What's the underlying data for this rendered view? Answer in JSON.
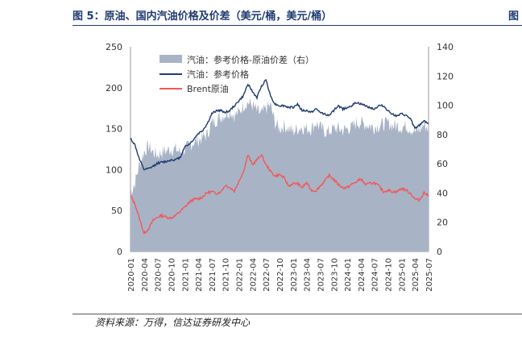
{
  "title": "图 5：原油、国内汽油价格及价差（美元/桶，美元/桶）",
  "corner_mark": "图",
  "source": "资料来源：万得，信达证券研发中心",
  "colors": {
    "spread": "#a9b3c6",
    "gasoline": "#1f3b70",
    "brent": "#ee5a5a",
    "title": "#1f3b70"
  },
  "chart_data": {
    "type": "area",
    "x_tick_labels": [
      "2020-01",
      "2020-04",
      "2020-07",
      "2020-10",
      "2021-01",
      "2021-04",
      "2021-07",
      "2021-10",
      "2022-01",
      "2022-04",
      "2022-07",
      "2022-10",
      "2023-01",
      "2023-04",
      "2023-07",
      "2023-10",
      "2024-01",
      "2024-04",
      "2024-07",
      "2024-10",
      "2025-01",
      "2025-04",
      "2025-07"
    ],
    "x": [
      "2020-01",
      "2020-02",
      "2020-03",
      "2020-04",
      "2020-05",
      "2020-06",
      "2020-07",
      "2020-08",
      "2020-09",
      "2020-10",
      "2020-11",
      "2020-12",
      "2021-01",
      "2021-02",
      "2021-03",
      "2021-04",
      "2021-05",
      "2021-06",
      "2021-07",
      "2021-08",
      "2021-09",
      "2021-10",
      "2021-11",
      "2021-12",
      "2022-01",
      "2022-02",
      "2022-03",
      "2022-04",
      "2022-05",
      "2022-06",
      "2022-07",
      "2022-08",
      "2022-09",
      "2022-10",
      "2022-11",
      "2022-12",
      "2023-01",
      "2023-02",
      "2023-03",
      "2023-04",
      "2023-05",
      "2023-06",
      "2023-07",
      "2023-08",
      "2023-09",
      "2023-10",
      "2023-11",
      "2023-12",
      "2024-01",
      "2024-02",
      "2024-03",
      "2024-04",
      "2024-05",
      "2024-06",
      "2024-07",
      "2024-08",
      "2024-09",
      "2024-10",
      "2024-11",
      "2024-12",
      "2025-01",
      "2025-02",
      "2025-03",
      "2025-04",
      "2025-05",
      "2025-06",
      "2025-07"
    ],
    "y_left": {
      "min": 0,
      "max": 250,
      "ticks": [
        0,
        50,
        100,
        150,
        200,
        250
      ]
    },
    "y_right": {
      "min": 0,
      "max": 140,
      "ticks": [
        0,
        20,
        40,
        60,
        80,
        100,
        120,
        140
      ]
    },
    "legend_placement": "top-left",
    "series": [
      {
        "name": "汽油：参考价格-原油价差（右）",
        "kind": "area",
        "axis": "right",
        "values": [
          40,
          47,
          60,
          68,
          72,
          68,
          66,
          68,
          69,
          70,
          70,
          68,
          70,
          72,
          75,
          76,
          78,
          80,
          88,
          90,
          92,
          94,
          96,
          93,
          95,
          100,
          102,
          100,
          96,
          94,
          98,
          100,
          88,
          84,
          86,
          84,
          82,
          84,
          85,
          84,
          84,
          88,
          85,
          82,
          82,
          84,
          84,
          83,
          84,
          85,
          88,
          88,
          87,
          86,
          85,
          86,
          87,
          88,
          86,
          86,
          85,
          86,
          84,
          82,
          83,
          87,
          84
        ]
      },
      {
        "name": "汽油：参考价格",
        "kind": "line",
        "axis": "left",
        "values": [
          138,
          130,
          112,
          100,
          101,
          104,
          108,
          109,
          110,
          112,
          112,
          115,
          128,
          131,
          137,
          144,
          148,
          156,
          168,
          172,
          172,
          170,
          172,
          178,
          184,
          190,
          205,
          195,
          188,
          202,
          210,
          190,
          180,
          178,
          178,
          176,
          176,
          180,
          172,
          172,
          170,
          174,
          170,
          168,
          166,
          172,
          178,
          174,
          176,
          178,
          182,
          180,
          178,
          176,
          174,
          178,
          178,
          172,
          168,
          165,
          168,
          166,
          162,
          150,
          154,
          160,
          156
        ]
      },
      {
        "name": "Brent原油",
        "kind": "line",
        "axis": "left",
        "values": [
          68,
          58,
          40,
          22,
          28,
          38,
          42,
          44,
          42,
          41,
          44,
          49,
          54,
          60,
          64,
          64,
          67,
          72,
          73,
          71,
          73,
          81,
          78,
          74,
          86,
          97,
          118,
          106,
          112,
          118,
          106,
          98,
          92,
          94,
          90,
          80,
          83,
          83,
          78,
          84,
          75,
          74,
          80,
          86,
          93,
          88,
          82,
          78,
          78,
          82,
          85,
          89,
          82,
          83,
          84,
          80,
          73,
          75,
          73,
          73,
          77,
          75,
          71,
          64,
          63,
          72,
          68
        ]
      }
    ]
  }
}
